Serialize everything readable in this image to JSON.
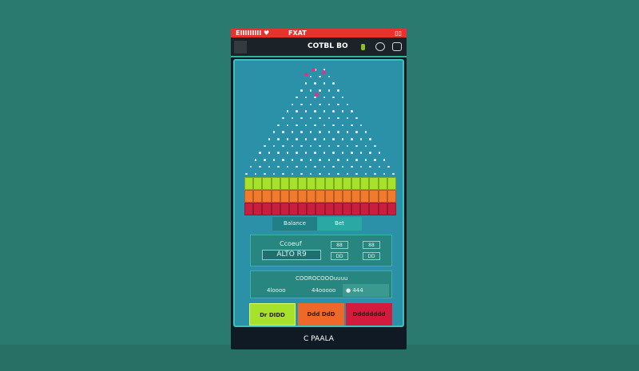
{
  "status_bar": {
    "left": "EIIIIIIIII ♥",
    "center": "FXAT",
    "right": "▯▯"
  },
  "header": {
    "title": "COTBL BO"
  },
  "board": {
    "pin_rows": 16,
    "bin_columns": 17,
    "bin_colors": [
      "#a6e22c",
      "#f27a2c",
      "#c81f3e"
    ],
    "balls": 4
  },
  "tabs": [
    {
      "label": "Balance"
    },
    {
      "label": "Bet"
    }
  ],
  "bet_panel": {
    "label": "Ccoeuf",
    "value": "ALTO R9",
    "options": [
      "88",
      "88",
      "DD",
      "DD"
    ]
  },
  "auto_panel": {
    "label": "COOROCOOOuuuu",
    "fields": [
      "4loooo",
      "44ooooo",
      "● 444"
    ]
  },
  "buttons": {
    "green": "Dr DIDD",
    "orange": "Ddd DdD",
    "red": "Dddddddd"
  },
  "footer": {
    "label": "C PAALA"
  },
  "colors": {
    "background": "#2b7a70",
    "board": "#2a91a8",
    "status": "#e8322e",
    "green": "#a6e22c",
    "orange": "#f0672a",
    "red": "#d41b3e"
  }
}
